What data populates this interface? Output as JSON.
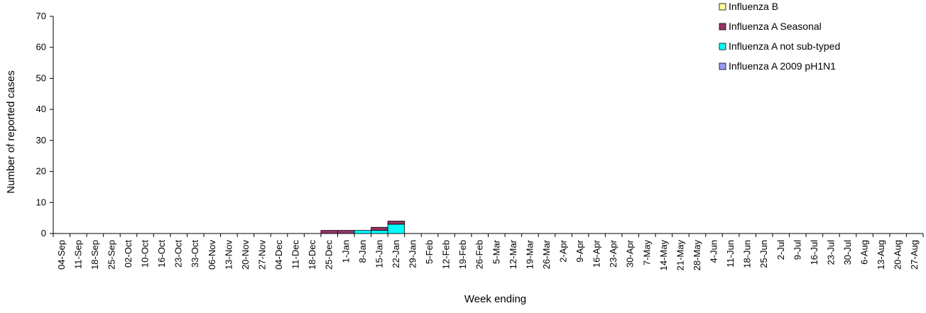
{
  "chart_data": {
    "type": "bar",
    "stacked": true,
    "title": "",
    "xlabel": "Week ending",
    "ylabel": "Number of reported cases",
    "ylim": [
      0,
      70
    ],
    "yticks": [
      0,
      10,
      20,
      30,
      40,
      50,
      60,
      70
    ],
    "grid": false,
    "legend_position": "top-right",
    "categories": [
      "04-Sep",
      "11-Sep",
      "18-Sep",
      "25-Sep",
      "02-Oct",
      "10-Oct",
      "16-Oct",
      "23-Oct",
      "33-Oct",
      "06-Nov",
      "13-Nov",
      "20-Nov",
      "27-Nov",
      "04-Dec",
      "11-Dec",
      "18-Dec",
      "25-Dec",
      "1-Jan",
      "8-Jan",
      "15-Jan",
      "22-Jan",
      "29-Jan",
      "5-Feb",
      "12-Feb",
      "19-Feb",
      "26-Feb",
      "5-Mar",
      "12-Mar",
      "19-Mar",
      "26-Mar",
      "2-Apr",
      "9-Apr",
      "16-Apr",
      "23-Apr",
      "30-Apr",
      "7-May",
      "14-May",
      "21-May",
      "28-May",
      "4-Jun",
      "11-Jun",
      "18-Jun",
      "25-Jun",
      "2-Jul",
      "9-Jul",
      "16-Jul",
      "23-Jul",
      "30-Jul",
      "6-Aug",
      "13-Aug",
      "20-Aug",
      "27-Aug"
    ],
    "series": [
      {
        "name": "Influenza A 2009 pH1N1",
        "color": "#9999ff",
        "values": [
          0,
          0,
          0,
          0,
          0,
          0,
          0,
          0,
          0,
          0,
          0,
          0,
          0,
          0,
          0,
          0,
          0,
          0,
          0,
          0,
          0,
          0,
          0,
          0,
          0,
          0,
          0,
          0,
          0,
          0,
          0,
          0,
          0,
          0,
          0,
          0,
          0,
          0,
          0,
          0,
          0,
          0,
          0,
          0,
          0,
          0,
          0,
          0,
          0,
          0,
          0,
          0
        ]
      },
      {
        "name": "Influenza A not sub-typed",
        "color": "#00ffff",
        "values": [
          0,
          0,
          0,
          0,
          0,
          0,
          0,
          0,
          0,
          0,
          0,
          0,
          0,
          0,
          0,
          0,
          0,
          0,
          1,
          1,
          3,
          0,
          0,
          0,
          0,
          0,
          0,
          0,
          0,
          0,
          0,
          0,
          0,
          0,
          0,
          0,
          0,
          0,
          0,
          0,
          0,
          0,
          0,
          0,
          0,
          0,
          0,
          0,
          0,
          0,
          0,
          0
        ]
      },
      {
        "name": "Influenza A Seasonal",
        "color": "#993366",
        "values": [
          0,
          0,
          0,
          0,
          0,
          0,
          0,
          0,
          0,
          0,
          0,
          0,
          0,
          0,
          0,
          0,
          1,
          1,
          0,
          1,
          1,
          0,
          0,
          0,
          0,
          0,
          0,
          0,
          0,
          0,
          0,
          0,
          0,
          0,
          0,
          0,
          0,
          0,
          0,
          0,
          0,
          0,
          0,
          0,
          0,
          0,
          0,
          0,
          0,
          0,
          0,
          0
        ]
      },
      {
        "name": "Influenza B",
        "color": "#ffff99",
        "values": [
          0,
          0,
          0,
          0,
          0,
          0,
          0,
          0,
          0,
          0,
          0,
          0,
          0,
          0,
          0,
          0,
          0,
          0,
          0,
          0,
          0,
          0,
          0,
          0,
          0,
          0,
          0,
          0,
          0,
          0,
          0,
          0,
          0,
          0,
          0,
          0,
          0,
          0,
          0,
          0,
          0,
          0,
          0,
          0,
          0,
          0,
          0,
          0,
          0,
          0,
          0,
          0
        ]
      }
    ],
    "legend_order": [
      "Influenza B",
      "Influenza A Seasonal",
      "Influenza A not sub-typed",
      "Influenza A 2009 pH1N1"
    ]
  }
}
